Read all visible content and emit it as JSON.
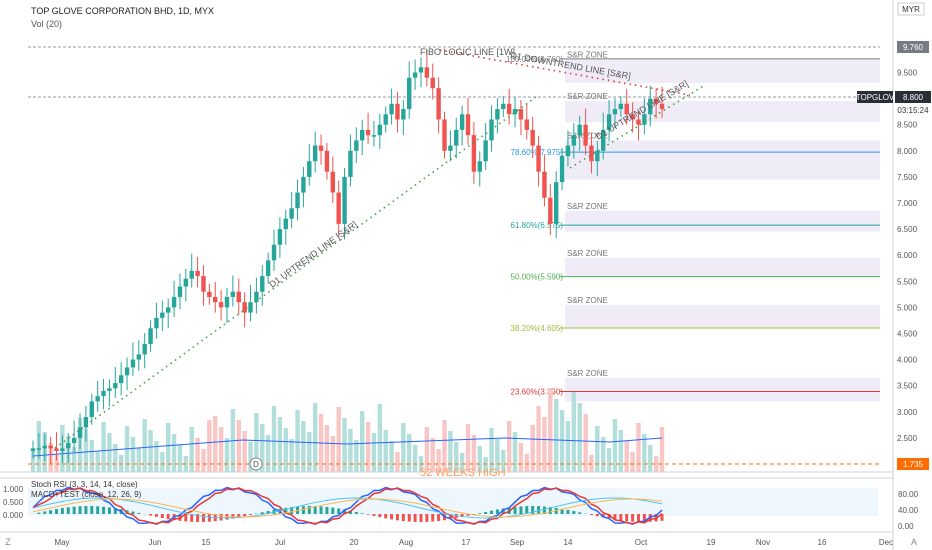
{
  "header": {
    "title": "TOP GLOVE CORPORATION BHD, 1D, MYX",
    "volume_label": "Vol (20)",
    "stoch_label": "Stoch RSI (3, 3, 14, 14, close)",
    "macd_label": "MACD+TEST (close, 12, 26, 9)"
  },
  "axis": {
    "currency_badge": "MYR",
    "zoom_left": "Z",
    "auto_right": "A",
    "price_ticks": [
      "10.000",
      "9.500",
      "9.000",
      "8.500",
      "8.000",
      "7.500",
      "7.000",
      "6.500",
      "6.000",
      "5.500",
      "5.000",
      "4.500",
      "4.000",
      "3.500",
      "3.000",
      "2.500",
      "2.000"
    ],
    "stoch_ticks": [
      "80.00",
      "40.00",
      "0.00"
    ],
    "macd_ticks": [
      "1.000",
      "0.500",
      "0.000"
    ],
    "x_ticks": [
      "May",
      "Jun",
      "15",
      "Jul",
      "20",
      "Aug",
      "17",
      "Sep",
      "14",
      "Oct",
      "19",
      "Nov",
      "16",
      "Dec"
    ]
  },
  "price_tags": {
    "last_price": "8.800",
    "ticker": "TOPGLOV",
    "high_price": "9.760",
    "countdown": "03:15:24",
    "week52": "1.735"
  },
  "annotations": {
    "fib_1000": "100.00%(9.760)",
    "fib_786": "78.60%(7.975)",
    "fib_618": "61.80%(6.575)",
    "fib_500": "50.00%(5.590)",
    "fib_382": "38.20%(4.605)",
    "fib_236": "23.60%(3.390)",
    "sr_zone": "S&R ZONE",
    "fibo_line": "FIBO LOGIC LINE [1W]",
    "d1_downtrend": "D1 DOWNTREND LINE [S&R]",
    "d1_uptrend": "D1 UPTREND LINE [S&R]",
    "d1_uptrend_2": "D1 UPTREND LINE [S&R]",
    "week52_high": "52 WEEKS HIGH",
    "dividend_marker": "D"
  },
  "colors": {
    "up": "#26a69a",
    "down": "#ef5350",
    "vol_up": "#b2dfdb",
    "vol_down": "#f8c6c5",
    "zone": "#e8e4f4",
    "fib_1000": "#787b86",
    "fib_786": "#2196f3",
    "fib_618": "#26a69a",
    "fib_500": "#4caf50",
    "fib_382": "#9bbf3a",
    "fib_236": "#e53935",
    "downtrend": "#e53935",
    "uptrend": "#43a047",
    "week52": "#ff6d00",
    "ma": "#2962ff"
  },
  "chart_data": {
    "type": "candlestick",
    "title": "TOP GLOVE CORPORATION BHD, 1D, MYX",
    "y_range": [
      1.4,
      10.4
    ],
    "series": [
      {
        "name": "price",
        "closes": [
          2.3,
          2.3,
          2.35,
          2.3,
          2.25,
          2.3,
          2.4,
          2.5,
          2.7,
          2.9,
          3.2,
          3.3,
          3.4,
          3.45,
          3.55,
          3.7,
          3.85,
          4.0,
          4.1,
          4.3,
          4.6,
          4.8,
          4.9,
          5.0,
          5.2,
          5.4,
          5.55,
          5.7,
          5.6,
          5.3,
          5.2,
          5.1,
          5.0,
          5.2,
          5.3,
          5.1,
          4.9,
          5.1,
          5.3,
          5.6,
          5.9,
          6.2,
          6.5,
          6.7,
          6.9,
          7.2,
          7.5,
          7.8,
          8.1,
          8.0,
          7.6,
          7.2,
          6.6,
          7.5,
          8.0,
          8.2,
          8.4,
          8.3,
          8.3,
          8.5,
          8.7,
          8.9,
          8.6,
          8.8,
          9.4,
          9.5,
          9.6,
          9.4,
          9.2,
          8.6,
          8.0,
          8.1,
          8.4,
          8.7,
          8.3,
          7.6,
          7.8,
          8.2,
          8.6,
          8.8,
          8.9,
          8.7,
          8.8,
          8.6,
          8.4,
          8.1,
          7.6,
          7.1,
          6.6,
          7.4,
          7.9,
          8.1,
          8.3,
          8.5,
          8.1,
          7.8,
          8.0,
          8.4,
          8.7,
          8.8,
          8.9,
          8.7,
          8.6,
          8.5,
          8.7,
          9.0,
          8.9,
          8.8
        ],
        "dates_start": "2020-04-27",
        "dates_end": "2020-10-07"
      },
      {
        "name": "volume_ma",
        "values": [
          2.0,
          2.1,
          2.2,
          2.3,
          2.4,
          2.35,
          2.3,
          2.35,
          2.4,
          2.45,
          2.4,
          2.35,
          2.45
        ]
      }
    ],
    "fib_levels": [
      {
        "label": "100.00%(9.760)",
        "value": 9.76
      },
      {
        "label": "78.60%(7.975)",
        "value": 7.975
      },
      {
        "label": "61.80%(6.575)",
        "value": 6.575
      },
      {
        "label": "50.00%(5.590)",
        "value": 5.59
      },
      {
        "label": "38.20%(4.605)",
        "value": 4.605
      },
      {
        "label": "23.60%(3.390)",
        "value": 3.39
      }
    ],
    "zones": [
      [
        9.3,
        9.75
      ],
      [
        8.55,
        8.95
      ],
      [
        7.45,
        8.2
      ],
      [
        6.45,
        6.85
      ],
      [
        5.6,
        5.95
      ],
      [
        4.6,
        5.05
      ],
      [
        3.2,
        3.65
      ]
    ],
    "x_ticks": [
      "May",
      "Jun",
      "15",
      "Jul",
      "20",
      "Aug",
      "17",
      "Sep",
      "14",
      "Oct",
      "19",
      "Nov",
      "16",
      "Dec"
    ],
    "last_price": 8.8,
    "stoch_range": [
      0,
      100
    ],
    "macd_range": [
      -0.2,
      1.1
    ]
  }
}
